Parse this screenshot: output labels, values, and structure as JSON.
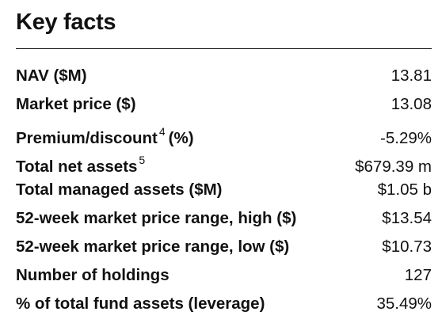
{
  "title": "Key facts",
  "rows": [
    {
      "label": "NAV ($M)",
      "sup": "",
      "value": "13.81"
    },
    {
      "label": "Market price ($)",
      "sup": "",
      "value": "13.08"
    },
    {
      "label": "Premium/discount",
      "sup": "4",
      "label_after": "(%)",
      "value": "-5.29%"
    },
    {
      "label": "Total net assets",
      "sup": "5",
      "value": "$679.39 m"
    },
    {
      "label": "Total managed assets ($M)",
      "sup": "",
      "value": "$1.05 b"
    },
    {
      "label": "52-week market price range, high ($)",
      "sup": "",
      "value": "$13.54"
    },
    {
      "label": "52-week market price range, low ($)",
      "sup": "",
      "value": "$10.73"
    },
    {
      "label": "Number of holdings",
      "sup": "",
      "value": "127"
    },
    {
      "label": "% of total fund assets (leverage)",
      "sup": "",
      "value": "35.49%"
    }
  ]
}
